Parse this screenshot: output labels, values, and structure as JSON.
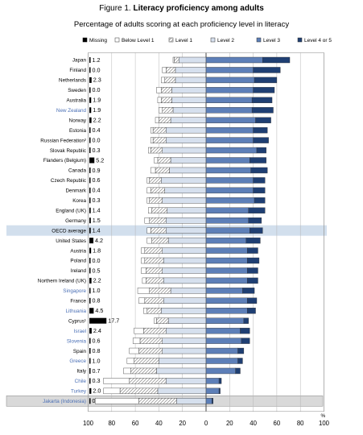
{
  "figure": {
    "number_label": "Figure 1.",
    "title": "Literacy proficiency among adults",
    "subtitle": "Percentage of adults scoring at each proficiency level in literacy"
  },
  "colors": {
    "missing": "#000000",
    "below_level_1": "#ffffff",
    "level_1_hatch": "#9a9a9a",
    "level_2": "#d6e0ee",
    "level_3": "#5d7fb8",
    "level_4_or_5": "#1f3f73",
    "highlight_blue": "#4a6fb5",
    "oecd_band": "#d2dfed",
    "jakarta_band": "#d9d9d9"
  },
  "chart_data": {
    "type": "bar",
    "stacked": "diverging",
    "legend_position": "top",
    "legend": [
      "Missing",
      "Below Level 1",
      "Level 1",
      "Level 2",
      "Level 3",
      "Level 4 or 5"
    ],
    "x_ticks": [
      "100",
      "80",
      "60",
      "40",
      "20",
      "0",
      "20",
      "40",
      "60",
      "80",
      "100"
    ],
    "x_unit": "%",
    "xlim": [
      -100,
      100
    ],
    "countries": [
      {
        "name": "Japan",
        "missing": "1.2",
        "below1": 1,
        "l1": 4,
        "l2": 23,
        "l3": 48,
        "l45": 23,
        "blue": false
      },
      {
        "name": "Finland",
        "missing": "0.0",
        "below1": 3,
        "l1": 8,
        "l2": 26,
        "l3": 40,
        "l45": 23,
        "blue": false
      },
      {
        "name": "Netherlands",
        "missing": "2.3",
        "below1": 3,
        "l1": 9,
        "l2": 26,
        "l3": 41,
        "l45": 19,
        "blue": false
      },
      {
        "name": "Sweden",
        "missing": "0.0",
        "below1": 4,
        "l1": 9,
        "l2": 29,
        "l3": 40,
        "l45": 18,
        "blue": false
      },
      {
        "name": "Australia",
        "missing": "1.9",
        "below1": 3,
        "l1": 9,
        "l2": 29,
        "l3": 39,
        "l45": 17,
        "blue": false
      },
      {
        "name": "New Zealand",
        "missing": "1.9",
        "below1": 3,
        "l1": 9,
        "l2": 28,
        "l3": 39,
        "l45": 18,
        "blue": true
      },
      {
        "name": "Norway",
        "missing": "2.2",
        "below1": 3,
        "l1": 10,
        "l2": 30,
        "l3": 42,
        "l45": 13,
        "blue": false
      },
      {
        "name": "Estonia",
        "missing": "0.4",
        "below1": 2,
        "l1": 11,
        "l2": 34,
        "l3": 40,
        "l45": 12,
        "blue": false
      },
      {
        "name": "Russian Federation²",
        "missing": "0.0",
        "below1": 2,
        "l1": 11,
        "l2": 34,
        "l3": 40,
        "l45": 13,
        "blue": false
      },
      {
        "name": "Slovak Republic",
        "missing": "0.3",
        "below1": 2,
        "l1": 10,
        "l2": 37,
        "l3": 43,
        "l45": 8,
        "blue": false
      },
      {
        "name": "Flanders (Belgium)",
        "missing": "5.2",
        "below1": 3,
        "l1": 11,
        "l2": 30,
        "l3": 37,
        "l45": 14,
        "blue": false
      },
      {
        "name": "Canada",
        "missing": "0.9",
        "below1": 4,
        "l1": 12,
        "l2": 31,
        "l3": 38,
        "l45": 14,
        "blue": false
      },
      {
        "name": "Czech Republic",
        "missing": "0.6",
        "below1": 2,
        "l1": 10,
        "l2": 38,
        "l3": 40,
        "l45": 10,
        "blue": false
      },
      {
        "name": "Denmark",
        "missing": "0.4",
        "below1": 3,
        "l1": 12,
        "l2": 35,
        "l3": 40,
        "l45": 10,
        "blue": false
      },
      {
        "name": "Korea",
        "missing": "0.3",
        "below1": 2,
        "l1": 11,
        "l2": 37,
        "l3": 41,
        "l45": 9,
        "blue": false
      },
      {
        "name": "England (UK)",
        "missing": "1.4",
        "below1": 3,
        "l1": 13,
        "l2": 33,
        "l3": 36,
        "l45": 14,
        "blue": false
      },
      {
        "name": "Germany",
        "missing": "1.5",
        "below1": 4,
        "l1": 14,
        "l2": 34,
        "l3": 36,
        "l45": 11,
        "blue": false
      },
      {
        "name": "OECD average",
        "missing": "1.4",
        "below1": 3,
        "l1": 13,
        "l2": 34,
        "l3": 37,
        "l45": 11,
        "blue": false,
        "highlight": true
      },
      {
        "name": "United States",
        "missing": "4.2",
        "below1": 4,
        "l1": 14,
        "l2": 32,
        "l3": 34,
        "l45": 12,
        "blue": false
      },
      {
        "name": "Austria",
        "missing": "1.8",
        "below1": 3,
        "l1": 15,
        "l2": 37,
        "l3": 35,
        "l45": 9,
        "blue": false
      },
      {
        "name": "Poland",
        "missing": "0.0",
        "below1": 3,
        "l1": 16,
        "l2": 36,
        "l3": 35,
        "l45": 10,
        "blue": false
      },
      {
        "name": "Ireland",
        "missing": "0.5",
        "below1": 4,
        "l1": 14,
        "l2": 37,
        "l3": 35,
        "l45": 9,
        "blue": false
      },
      {
        "name": "Northern Ireland (UK)",
        "missing": "2.2",
        "below1": 3,
        "l1": 15,
        "l2": 36,
        "l3": 35,
        "l45": 9,
        "blue": false
      },
      {
        "name": "Singapore",
        "missing": "1.0",
        "below1": 10,
        "l1": 18,
        "l2": 30,
        "l3": 31,
        "l45": 10,
        "blue": true
      },
      {
        "name": "France",
        "missing": "0.8",
        "below1": 5,
        "l1": 16,
        "l2": 36,
        "l3": 35,
        "l45": 8,
        "blue": false
      },
      {
        "name": "Lithuania",
        "missing": "4.5",
        "below1": 3,
        "l1": 12,
        "l2": 38,
        "l3": 35,
        "l45": 7,
        "blue": true
      },
      {
        "name": "Cyprus¹",
        "missing": "17.7",
        "below1": 2,
        "l1": 10,
        "l2": 32,
        "l3": 32,
        "l45": 4,
        "blue": false
      },
      {
        "name": "Israel",
        "missing": "2.4",
        "below1": 8,
        "l1": 19,
        "l2": 34,
        "l3": 29,
        "l45": 8,
        "blue": true
      },
      {
        "name": "Slovenia",
        "missing": "0.6",
        "below1": 6,
        "l1": 19,
        "l2": 37,
        "l3": 30,
        "l45": 7,
        "blue": true
      },
      {
        "name": "Spain",
        "missing": "0.8",
        "below1": 8,
        "l1": 20,
        "l2": 37,
        "l3": 27,
        "l45": 5,
        "blue": false
      },
      {
        "name": "Greece",
        "missing": "1.0",
        "below1": 6,
        "l1": 21,
        "l2": 40,
        "l3": 27,
        "l45": 4,
        "blue": true
      },
      {
        "name": "Italy",
        "missing": "0.7",
        "below1": 6,
        "l1": 22,
        "l2": 42,
        "l3": 25,
        "l45": 4,
        "blue": false
      },
      {
        "name": "Chile",
        "missing": "0.3",
        "below1": 22,
        "l1": 31,
        "l2": 34,
        "l3": 11,
        "l45": 2,
        "blue": true
      },
      {
        "name": "Turkey",
        "missing": "2.0",
        "below1": 14,
        "l1": 32,
        "l2": 41,
        "l3": 11,
        "l45": 1,
        "blue": true
      },
      {
        "name": "Jakarta (Indonesia)",
        "missing": "0.0",
        "below1": 37,
        "l1": 32,
        "l2": 25,
        "l3": 5,
        "l45": 1,
        "blue": true,
        "highlight": true
      }
    ]
  }
}
